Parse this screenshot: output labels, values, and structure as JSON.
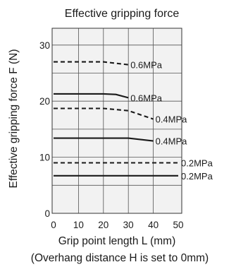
{
  "chart_data": {
    "type": "line",
    "title": "Effective gripping force",
    "xlabel": "Grip point length L (mm)",
    "ylabel": "Effective gripping force  F (N)",
    "note": "(Overhang distance H is set to 0mm)",
    "xlim": [
      0,
      50
    ],
    "ylim": [
      0,
      33
    ],
    "x_ticks": [
      "0",
      "10",
      "20",
      "30",
      "40",
      "50"
    ],
    "y_ticks": [
      "0",
      "10",
      "20",
      "30"
    ],
    "grid": true,
    "series": [
      {
        "name": "0.6MPa",
        "style": "dashed",
        "x": [
          0,
          20,
          30
        ],
        "y": [
          27,
          27,
          26.5
        ]
      },
      {
        "name": "0.6MPa",
        "style": "solid",
        "x": [
          0,
          20,
          25,
          30
        ],
        "y": [
          21.3,
          21.3,
          21.2,
          20.6
        ]
      },
      {
        "name": "0.4MPa",
        "style": "dashed",
        "x": [
          0,
          20,
          30,
          40
        ],
        "y": [
          18.7,
          18.7,
          18.3,
          16.8
        ]
      },
      {
        "name": "0.4MPa",
        "style": "solid",
        "x": [
          0,
          30,
          40
        ],
        "y": [
          13.4,
          13.4,
          12.9
        ]
      },
      {
        "name": "0.2MPa",
        "style": "dashed",
        "x": [
          0,
          50
        ],
        "y": [
          9,
          9
        ]
      },
      {
        "name": "0.2MPa",
        "style": "solid",
        "x": [
          0,
          50
        ],
        "y": [
          6.7,
          6.7
        ]
      }
    ]
  }
}
